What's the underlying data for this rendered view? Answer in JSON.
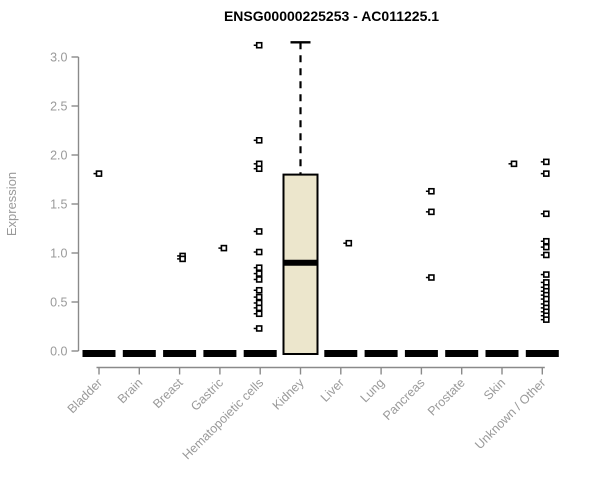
{
  "chart_data": {
    "type": "boxplot",
    "title": "ENSG00000225253 - AC011225.1",
    "ylabel": "Expression",
    "ylim": [
      0.0,
      3.2
    ],
    "yticks": [
      0.0,
      0.5,
      1.0,
      1.5,
      2.0,
      2.5,
      3.0
    ],
    "grid": false,
    "legend": "none",
    "categories": [
      "Bladder",
      "Brain",
      "Breast",
      "Gastric",
      "Hematopoietic cells",
      "Kidney",
      "Liver",
      "Lung",
      "Pancreas",
      "Prostate",
      "Skin",
      "Unknown / Other"
    ],
    "series": [
      {
        "category": "Bladder",
        "box": {
          "q1": 0,
          "median": 0,
          "q3": 0,
          "whisker_low": 0,
          "whisker_high": 0
        },
        "outliers": [
          1.81
        ]
      },
      {
        "category": "Brain",
        "box": {
          "q1": 0,
          "median": 0,
          "q3": 0,
          "whisker_low": 0,
          "whisker_high": 0
        },
        "outliers": []
      },
      {
        "category": "Breast",
        "box": {
          "q1": 0,
          "median": 0,
          "q3": 0,
          "whisker_low": 0,
          "whisker_high": 0
        },
        "outliers": [
          0.97,
          0.94
        ]
      },
      {
        "category": "Gastric",
        "box": {
          "q1": 0,
          "median": 0,
          "q3": 0,
          "whisker_low": 0,
          "whisker_high": 0
        },
        "outliers": [
          1.05
        ]
      },
      {
        "category": "Hematopoietic cells",
        "box": {
          "q1": 0,
          "median": 0,
          "q3": 0,
          "whisker_low": 0,
          "whisker_high": 0
        },
        "outliers": [
          3.12,
          2.15,
          1.91,
          1.86,
          1.22,
          1.01,
          0.85,
          0.79,
          0.73,
          0.62,
          0.55,
          0.49,
          0.44,
          0.38,
          0.23
        ]
      },
      {
        "category": "Kidney",
        "box": {
          "q1": 0,
          "median": 0.9,
          "q3": 1.8,
          "whisker_low": 0,
          "whisker_high": 3.15
        },
        "outliers": []
      },
      {
        "category": "Liver",
        "box": {
          "q1": 0,
          "median": 0,
          "q3": 0,
          "whisker_low": 0,
          "whisker_high": 0
        },
        "outliers": [
          1.1
        ]
      },
      {
        "category": "Lung",
        "box": {
          "q1": 0,
          "median": 0,
          "q3": 0,
          "whisker_low": 0,
          "whisker_high": 0
        },
        "outliers": []
      },
      {
        "category": "Pancreas",
        "box": {
          "q1": 0,
          "median": 0,
          "q3": 0,
          "whisker_low": 0,
          "whisker_high": 0
        },
        "outliers": [
          1.63,
          1.42,
          0.75
        ]
      },
      {
        "category": "Prostate",
        "box": {
          "q1": 0,
          "median": 0,
          "q3": 0,
          "whisker_low": 0,
          "whisker_high": 0
        },
        "outliers": []
      },
      {
        "category": "Skin",
        "box": {
          "q1": 0,
          "median": 0,
          "q3": 0,
          "whisker_low": 0,
          "whisker_high": 0
        },
        "outliers": [
          1.91
        ]
      },
      {
        "category": "Unknown / Other",
        "box": {
          "q1": 0,
          "median": 0,
          "q3": 0,
          "whisker_low": 0,
          "whisker_high": 0
        },
        "outliers": [
          1.93,
          1.81,
          1.4,
          1.12,
          1.06,
          0.98,
          0.78,
          0.7,
          0.65,
          0.61,
          0.57,
          0.53,
          0.48,
          0.44,
          0.4,
          0.36,
          0.32
        ]
      }
    ],
    "colors": {
      "background": "#ffffff",
      "box_fill": "#ece6cc",
      "box_border": "#000000",
      "median": "#000000",
      "zero_bar": "#000000",
      "outlier_stroke": "#000000",
      "outlier_fill": "#ffffff",
      "axis": "#8a8a8a",
      "labels": "#9a9a9a",
      "title": "#000000"
    }
  }
}
